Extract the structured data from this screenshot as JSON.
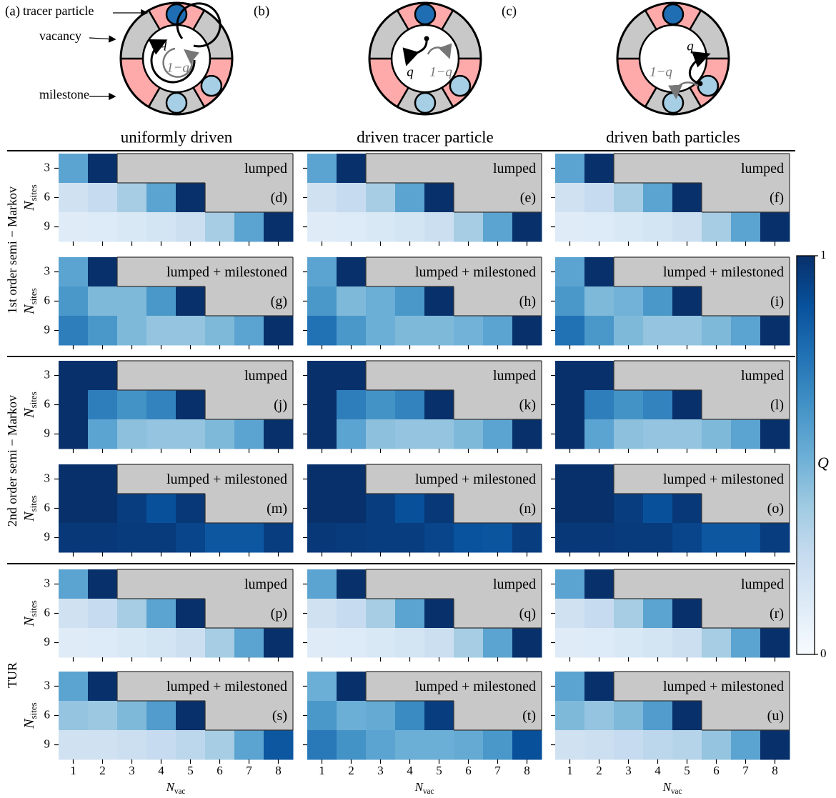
{
  "diagrams": [
    {
      "panel": "(a)",
      "title": "uniformly driven",
      "labels": [
        "tracer particle",
        "vacancy",
        "milestone"
      ],
      "rates": [
        "q",
        "1−q"
      ]
    },
    {
      "panel": "(b)",
      "title": "driven tracer particle",
      "rates": [
        "q",
        "1−q"
      ]
    },
    {
      "panel": "(c)",
      "title": "driven bath particles",
      "rates": [
        "q",
        "1−q"
      ]
    }
  ],
  "row_groups": [
    "1st order semi − Markov",
    "2nd order semi − Markov",
    "TUR"
  ],
  "missing_color": "#c8c8c8",
  "colorbar": {
    "label": "Q",
    "colormap": "Blues",
    "lim": [
      0,
      1
    ],
    "ticks": [
      0,
      1
    ]
  },
  "chart_data": [
    {
      "type": "heatmap",
      "annotation": "lumped",
      "panel": "(d)",
      "ylabel": {
        "symbol": "N",
        "subscript": "sites"
      },
      "x": [
        1,
        2,
        3,
        4,
        5,
        6,
        7,
        8
      ],
      "y": [
        3,
        6,
        9
      ],
      "values": [
        [
          0.55,
          1,
          null,
          null,
          null,
          null,
          null,
          null
        ],
        [
          0.2,
          0.25,
          0.35,
          0.55,
          1,
          null,
          null,
          null
        ],
        [
          0.12,
          0.13,
          0.15,
          0.18,
          0.22,
          0.35,
          0.55,
          1
        ]
      ]
    },
    {
      "type": "heatmap",
      "annotation": "lumped",
      "panel": "(e)",
      "x": [
        1,
        2,
        3,
        4,
        5,
        6,
        7,
        8
      ],
      "y": [
        3,
        6,
        9
      ],
      "values": [
        [
          0.55,
          1,
          null,
          null,
          null,
          null,
          null,
          null
        ],
        [
          0.2,
          0.25,
          0.35,
          0.55,
          1,
          null,
          null,
          null
        ],
        [
          0.12,
          0.13,
          0.15,
          0.18,
          0.22,
          0.35,
          0.55,
          1
        ]
      ]
    },
    {
      "type": "heatmap",
      "annotation": "lumped",
      "panel": "(f)",
      "x": [
        1,
        2,
        3,
        4,
        5,
        6,
        7,
        8
      ],
      "y": [
        3,
        6,
        9
      ],
      "values": [
        [
          0.55,
          1,
          null,
          null,
          null,
          null,
          null,
          null
        ],
        [
          0.2,
          0.25,
          0.35,
          0.55,
          1,
          null,
          null,
          null
        ],
        [
          0.12,
          0.13,
          0.15,
          0.18,
          0.22,
          0.35,
          0.55,
          1
        ]
      ]
    },
    {
      "type": "heatmap",
      "annotation": "lumped + milestoned",
      "panel": "(g)",
      "ylabel": {
        "symbol": "N",
        "subscript": "sites"
      },
      "x": [
        1,
        2,
        3,
        4,
        5,
        6,
        7,
        8
      ],
      "y": [
        3,
        6,
        9
      ],
      "values": [
        [
          0.55,
          1,
          null,
          null,
          null,
          null,
          null,
          null
        ],
        [
          0.6,
          0.45,
          0.45,
          0.6,
          1,
          null,
          null,
          null
        ],
        [
          0.7,
          0.6,
          0.45,
          0.4,
          0.4,
          0.45,
          0.55,
          1
        ]
      ]
    },
    {
      "type": "heatmap",
      "annotation": "lumped + milestoned",
      "panel": "(h)",
      "x": [
        1,
        2,
        3,
        4,
        5,
        6,
        7,
        8
      ],
      "y": [
        3,
        6,
        9
      ],
      "values": [
        [
          0.55,
          1,
          null,
          null,
          null,
          null,
          null,
          null
        ],
        [
          0.6,
          0.45,
          0.5,
          0.6,
          1,
          null,
          null,
          null
        ],
        [
          0.75,
          0.6,
          0.5,
          0.45,
          0.45,
          0.48,
          0.55,
          1
        ]
      ]
    },
    {
      "type": "heatmap",
      "annotation": "lumped + milestoned",
      "panel": "(i)",
      "x": [
        1,
        2,
        3,
        4,
        5,
        6,
        7,
        8
      ],
      "y": [
        3,
        6,
        9
      ],
      "values": [
        [
          0.55,
          1,
          null,
          null,
          null,
          null,
          null,
          null
        ],
        [
          0.6,
          0.45,
          0.48,
          0.6,
          1,
          null,
          null,
          null
        ],
        [
          0.75,
          0.6,
          0.45,
          0.4,
          0.4,
          0.45,
          0.55,
          1
        ]
      ]
    },
    {
      "type": "heatmap",
      "annotation": "lumped",
      "panel": "(j)",
      "ylabel": {
        "symbol": "N",
        "subscript": "sites"
      },
      "x": [
        1,
        2,
        3,
        4,
        5,
        6,
        7,
        8
      ],
      "y": [
        3,
        6,
        9
      ],
      "values": [
        [
          1,
          1,
          null,
          null,
          null,
          null,
          null,
          null
        ],
        [
          1,
          0.7,
          0.62,
          0.68,
          1,
          null,
          null,
          null
        ],
        [
          1,
          0.55,
          0.42,
          0.4,
          0.4,
          0.45,
          0.55,
          1
        ]
      ]
    },
    {
      "type": "heatmap",
      "annotation": "lumped",
      "panel": "(k)",
      "x": [
        1,
        2,
        3,
        4,
        5,
        6,
        7,
        8
      ],
      "y": [
        3,
        6,
        9
      ],
      "values": [
        [
          1,
          1,
          null,
          null,
          null,
          null,
          null,
          null
        ],
        [
          1,
          0.7,
          0.62,
          0.68,
          1,
          null,
          null,
          null
        ],
        [
          1,
          0.55,
          0.42,
          0.4,
          0.4,
          0.45,
          0.55,
          1
        ]
      ]
    },
    {
      "type": "heatmap",
      "annotation": "lumped",
      "panel": "(l)",
      "x": [
        1,
        2,
        3,
        4,
        5,
        6,
        7,
        8
      ],
      "y": [
        3,
        6,
        9
      ],
      "values": [
        [
          1,
          1,
          null,
          null,
          null,
          null,
          null,
          null
        ],
        [
          1,
          0.7,
          0.62,
          0.68,
          1,
          null,
          null,
          null
        ],
        [
          1,
          0.55,
          0.42,
          0.4,
          0.4,
          0.45,
          0.55,
          1
        ]
      ]
    },
    {
      "type": "heatmap",
      "annotation": "lumped + milestoned",
      "panel": "(m)",
      "ylabel": {
        "symbol": "N",
        "subscript": "sites"
      },
      "x": [
        1,
        2,
        3,
        4,
        5,
        6,
        7,
        8
      ],
      "y": [
        3,
        6,
        9
      ],
      "values": [
        [
          1,
          1,
          null,
          null,
          null,
          null,
          null,
          null
        ],
        [
          1,
          1,
          0.95,
          0.88,
          0.97,
          null,
          null,
          null
        ],
        [
          0.97,
          0.97,
          0.96,
          0.96,
          0.92,
          0.85,
          0.85,
          0.95
        ]
      ]
    },
    {
      "type": "heatmap",
      "annotation": "lumped + milestoned",
      "panel": "(n)",
      "x": [
        1,
        2,
        3,
        4,
        5,
        6,
        7,
        8
      ],
      "y": [
        3,
        6,
        9
      ],
      "values": [
        [
          1,
          1,
          null,
          null,
          null,
          null,
          null,
          null
        ],
        [
          1,
          1,
          0.95,
          0.88,
          0.97,
          null,
          null,
          null
        ],
        [
          0.97,
          0.96,
          0.95,
          0.95,
          0.92,
          0.87,
          0.86,
          0.95
        ]
      ]
    },
    {
      "type": "heatmap",
      "annotation": "lumped + milestoned",
      "panel": "(o)",
      "x": [
        1,
        2,
        3,
        4,
        5,
        6,
        7,
        8
      ],
      "y": [
        3,
        6,
        9
      ],
      "values": [
        [
          1,
          1,
          null,
          null,
          null,
          null,
          null,
          null
        ],
        [
          1,
          1,
          0.95,
          0.88,
          0.97,
          null,
          null,
          null
        ],
        [
          0.97,
          0.97,
          0.96,
          0.96,
          0.92,
          0.85,
          0.85,
          0.95
        ]
      ]
    },
    {
      "type": "heatmap",
      "annotation": "lumped",
      "panel": "(p)",
      "ylabel": {
        "symbol": "N",
        "subscript": "sites"
      },
      "x": [
        1,
        2,
        3,
        4,
        5,
        6,
        7,
        8
      ],
      "y": [
        3,
        6,
        9
      ],
      "values": [
        [
          0.55,
          1,
          null,
          null,
          null,
          null,
          null,
          null
        ],
        [
          0.2,
          0.25,
          0.35,
          0.55,
          1,
          null,
          null,
          null
        ],
        [
          0.12,
          0.13,
          0.15,
          0.18,
          0.22,
          0.35,
          0.55,
          1
        ]
      ]
    },
    {
      "type": "heatmap",
      "annotation": "lumped",
      "panel": "(q)",
      "x": [
        1,
        2,
        3,
        4,
        5,
        6,
        7,
        8
      ],
      "y": [
        3,
        6,
        9
      ],
      "values": [
        [
          0.55,
          1,
          null,
          null,
          null,
          null,
          null,
          null
        ],
        [
          0.2,
          0.25,
          0.35,
          0.55,
          1,
          null,
          null,
          null
        ],
        [
          0.12,
          0.13,
          0.15,
          0.18,
          0.22,
          0.35,
          0.55,
          1
        ]
      ]
    },
    {
      "type": "heatmap",
      "annotation": "lumped",
      "panel": "(r)",
      "x": [
        1,
        2,
        3,
        4,
        5,
        6,
        7,
        8
      ],
      "y": [
        3,
        6,
        9
      ],
      "values": [
        [
          0.55,
          1,
          null,
          null,
          null,
          null,
          null,
          null
        ],
        [
          0.2,
          0.25,
          0.35,
          0.55,
          1,
          null,
          null,
          null
        ],
        [
          0.12,
          0.13,
          0.15,
          0.18,
          0.22,
          0.35,
          0.55,
          1
        ]
      ]
    },
    {
      "type": "heatmap",
      "annotation": "lumped + milestoned",
      "panel": "(s)",
      "ylabel": {
        "symbol": "N",
        "subscript": "sites"
      },
      "xlabel": {
        "symbol": "N",
        "subscript": "vac"
      },
      "x": [
        1,
        2,
        3,
        4,
        5,
        6,
        7,
        8
      ],
      "y": [
        3,
        6,
        9
      ],
      "values": [
        [
          0.55,
          1,
          null,
          null,
          null,
          null,
          null,
          null
        ],
        [
          0.4,
          0.38,
          0.45,
          0.58,
          1,
          null,
          null,
          null
        ],
        [
          0.2,
          0.2,
          0.22,
          0.25,
          0.28,
          0.35,
          0.55,
          0.85
        ]
      ]
    },
    {
      "type": "heatmap",
      "annotation": "lumped + milestoned",
      "panel": "(t)",
      "xlabel": {
        "symbol": "N",
        "subscript": "vac"
      },
      "x": [
        1,
        2,
        3,
        4,
        5,
        6,
        7,
        8
      ],
      "y": [
        3,
        6,
        9
      ],
      "values": [
        [
          0.5,
          1,
          null,
          null,
          null,
          null,
          null,
          null
        ],
        [
          0.6,
          0.5,
          0.52,
          0.65,
          0.95,
          null,
          null,
          null
        ],
        [
          0.72,
          0.62,
          0.55,
          0.5,
          0.5,
          0.52,
          0.6,
          0.88
        ]
      ]
    },
    {
      "type": "heatmap",
      "annotation": "lumped + milestoned",
      "panel": "(u)",
      "xlabel": {
        "symbol": "N",
        "subscript": "vac"
      },
      "x": [
        1,
        2,
        3,
        4,
        5,
        6,
        7,
        8
      ],
      "y": [
        3,
        6,
        9
      ],
      "values": [
        [
          0.55,
          1,
          null,
          null,
          null,
          null,
          null,
          null
        ],
        [
          0.45,
          0.4,
          0.45,
          0.58,
          1,
          null,
          null,
          null
        ],
        [
          0.2,
          0.22,
          0.25,
          0.28,
          0.3,
          0.4,
          0.55,
          1
        ]
      ]
    }
  ]
}
